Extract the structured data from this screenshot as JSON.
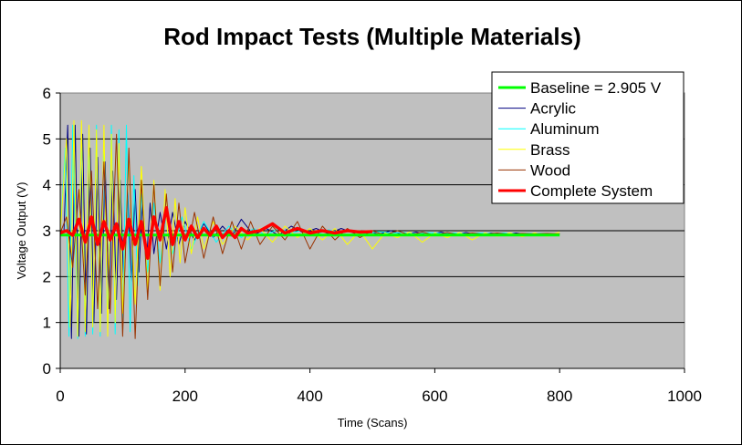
{
  "chart_data": {
    "type": "line",
    "title": "Rod Impact Tests (Multiple Materials)",
    "xlabel": "Time (Scans)",
    "ylabel": "Voltage Output (V)",
    "xlim": [
      0,
      1000
    ],
    "ylim": [
      0,
      6
    ],
    "xticks": [
      "0",
      "200",
      "400",
      "600",
      "800",
      "1000"
    ],
    "yticks": [
      "0",
      "1",
      "2",
      "3",
      "4",
      "5",
      "6"
    ],
    "grid": "horizontal major lines",
    "plot_background": "#c0c0c0",
    "legend_position": "top-right",
    "series": [
      {
        "name": "Baseline = 2.905 V",
        "color": "#00ff00",
        "x": [
          0,
          800
        ],
        "y": [
          2.905,
          2.905
        ]
      },
      {
        "name": "Acrylic",
        "color": "#000080",
        "x": [
          0,
          6,
          12,
          18,
          24,
          30,
          36,
          42,
          48,
          54,
          60,
          66,
          72,
          78,
          84,
          90,
          96,
          102,
          108,
          114,
          120,
          126,
          132,
          138,
          144,
          150,
          160,
          170,
          180,
          190,
          200,
          215,
          230,
          245,
          260,
          275,
          290,
          310,
          330,
          350,
          370,
          390,
          410,
          430,
          450,
          470,
          490,
          510,
          530,
          550,
          570,
          590,
          610,
          630,
          650,
          670,
          690,
          710,
          730,
          750,
          770,
          790,
          800
        ],
        "y": [
          2.95,
          3.0,
          5.3,
          0.65,
          5.3,
          0.7,
          5.1,
          0.75,
          4.8,
          1.0,
          4.6,
          1.2,
          4.5,
          1.3,
          4.3,
          1.5,
          4.1,
          1.7,
          3.9,
          1.9,
          3.9,
          2.1,
          3.7,
          2.3,
          3.6,
          2.5,
          3.4,
          2.6,
          3.4,
          2.7,
          3.2,
          2.8,
          3.15,
          2.85,
          3.1,
          2.88,
          3.25,
          2.9,
          3.05,
          2.9,
          3.1,
          2.95,
          3.05,
          2.93,
          3.05,
          2.95,
          3.0,
          2.92,
          3.0,
          2.9,
          2.97,
          2.9,
          2.97,
          2.9,
          2.96,
          2.91,
          2.95,
          2.91,
          2.95,
          2.92,
          2.94,
          2.92,
          2.93
        ]
      },
      {
        "name": "Aluminum",
        "color": "#00ffff",
        "x": [
          0,
          8,
          14,
          20,
          28,
          34,
          40,
          46,
          52,
          58,
          64,
          70,
          76,
          82,
          88,
          94,
          100,
          106,
          112,
          118,
          124,
          130,
          140,
          150,
          160,
          170,
          180,
          195,
          210,
          230,
          250,
          270,
          290,
          310,
          330,
          350,
          370,
          390,
          410,
          430,
          450,
          470,
          490,
          510,
          530,
          550,
          570,
          590,
          610,
          630,
          650,
          670,
          690,
          710,
          730,
          750,
          770,
          790
        ],
        "y": [
          3.0,
          4.8,
          0.7,
          5.3,
          0.65,
          5.2,
          0.7,
          5.2,
          0.75,
          5.3,
          0.7,
          5.0,
          0.9,
          5.3,
          0.75,
          5.2,
          0.9,
          5.3,
          0.8,
          4.2,
          1.8,
          3.8,
          2.1,
          3.6,
          2.3,
          3.4,
          2.5,
          3.3,
          2.6,
          3.2,
          2.75,
          3.1,
          2.85,
          3.05,
          2.9,
          3.05,
          2.95,
          3.02,
          2.92,
          3.02,
          2.95,
          3.0,
          2.93,
          2.98,
          2.95,
          2.96,
          2.93,
          2.96,
          2.94,
          2.95,
          2.93,
          2.95,
          2.94,
          2.95,
          2.93,
          2.94,
          2.94,
          2.93
        ]
      },
      {
        "name": "Brass",
        "color": "#ffff00",
        "x": [
          0,
          10,
          16,
          22,
          28,
          34,
          40,
          46,
          52,
          58,
          64,
          70,
          76,
          82,
          88,
          94,
          100,
          110,
          120,
          130,
          140,
          150,
          160,
          168,
          176,
          184,
          192,
          200,
          210,
          220,
          230,
          245,
          260,
          280,
          300,
          320,
          340,
          360,
          380,
          400,
          420,
          440,
          460,
          480,
          500,
          520,
          540,
          560,
          580,
          600,
          620,
          640,
          660,
          680,
          700,
          720,
          740,
          760,
          780,
          800
        ],
        "y": [
          2.95,
          5.0,
          0.9,
          5.4,
          0.7,
          5.4,
          0.8,
          5.3,
          0.9,
          5.2,
          0.8,
          5.3,
          0.7,
          5.1,
          1.0,
          4.9,
          1.2,
          4.6,
          1.4,
          4.4,
          1.7,
          4.1,
          1.7,
          3.9,
          2.0,
          3.7,
          2.3,
          3.5,
          2.5,
          3.3,
          2.6,
          3.2,
          2.7,
          3.1,
          2.8,
          3.05,
          2.75,
          3.1,
          2.85,
          3.05,
          2.8,
          3.05,
          2.7,
          3.0,
          2.6,
          2.95,
          2.85,
          2.97,
          2.75,
          2.95,
          2.85,
          2.96,
          2.8,
          2.95,
          2.88,
          2.95,
          2.87,
          2.95,
          2.88,
          2.97
        ]
      },
      {
        "name": "Wood",
        "color": "#993300",
        "x": [
          0,
          10,
          20,
          30,
          40,
          50,
          60,
          70,
          80,
          90,
          100,
          110,
          120,
          130,
          140,
          150,
          160,
          170,
          180,
          190,
          200,
          215,
          230,
          245,
          260,
          275,
          290,
          305,
          320,
          340,
          360,
          380,
          400,
          420,
          440,
          460,
          480,
          500,
          520,
          540,
          560,
          580,
          600,
          620,
          640,
          660,
          680,
          700,
          720,
          740,
          760,
          780,
          800
        ],
        "y": [
          2.95,
          3.3,
          2.2,
          3.9,
          1.6,
          4.3,
          1.3,
          4.5,
          1.2,
          5.1,
          0.7,
          4.8,
          0.65,
          4.1,
          1.5,
          4.0,
          1.8,
          3.8,
          2.1,
          3.6,
          2.3,
          3.4,
          2.4,
          3.3,
          2.5,
          3.2,
          2.6,
          3.2,
          2.7,
          3.1,
          2.8,
          3.2,
          2.6,
          3.1,
          2.8,
          3.05,
          2.85,
          3.0,
          2.9,
          3.0,
          2.9,
          2.97,
          2.9,
          2.96,
          2.91,
          2.95,
          2.92,
          2.95,
          2.92,
          2.94,
          2.93,
          2.94,
          2.93
        ]
      },
      {
        "name": "Complete System",
        "color": "#ff0000",
        "x": [
          0,
          10,
          20,
          30,
          40,
          50,
          60,
          70,
          80,
          90,
          100,
          110,
          120,
          130,
          140,
          150,
          160,
          170,
          180,
          190,
          200,
          210,
          220,
          230,
          240,
          250,
          260,
          270,
          280,
          290,
          300,
          320,
          340,
          360,
          380,
          400,
          420,
          440,
          460,
          480,
          500
        ],
        "y": [
          2.95,
          3.0,
          2.9,
          3.25,
          2.75,
          3.3,
          2.7,
          3.2,
          2.8,
          3.15,
          2.6,
          3.25,
          2.7,
          3.2,
          2.4,
          3.3,
          2.8,
          3.5,
          2.7,
          3.2,
          2.8,
          3.1,
          2.85,
          3.05,
          2.9,
          3.1,
          2.85,
          3.0,
          2.85,
          3.05,
          2.95,
          3.0,
          3.15,
          2.95,
          3.05,
          2.95,
          3.0,
          2.95,
          3.0,
          2.97,
          2.98
        ]
      }
    ]
  }
}
